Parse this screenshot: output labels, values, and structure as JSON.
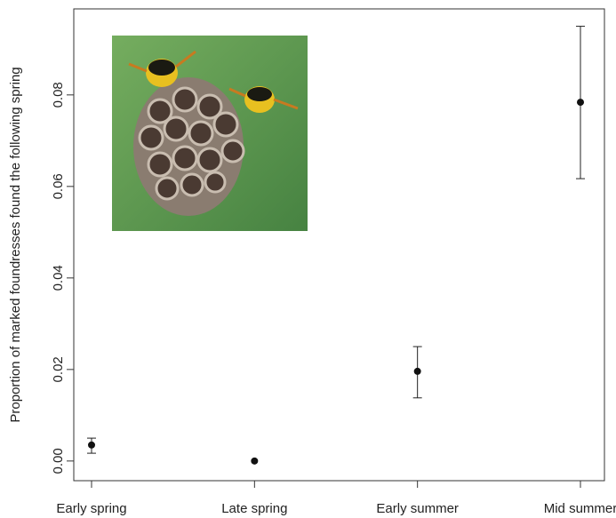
{
  "chart_data": {
    "type": "errorbar_points",
    "y_label": "Proportion of marked foundresses found the following spring",
    "categories": [
      "Early spring",
      "Late spring",
      "Early summer",
      "Mid summer"
    ],
    "values": [
      0.0035,
      0.0,
      0.0196,
      0.0784
    ],
    "lower": [
      0.0017,
      0.0,
      0.0138,
      0.0617
    ],
    "upper": [
      0.005,
      0.0,
      0.025,
      0.095
    ],
    "color": "#111111",
    "ylim": [
      -0.0043,
      0.0988
    ],
    "yticks": [
      {
        "value": 0,
        "label": "0.00"
      },
      0.02,
      0.04,
      0.06,
      0.08
    ]
  }
}
